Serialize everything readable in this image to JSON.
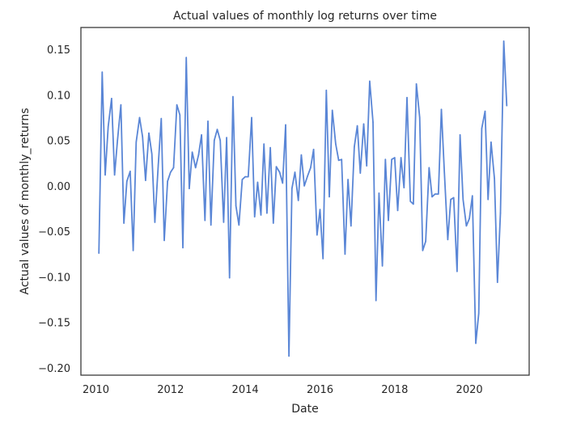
{
  "chart_data": {
    "type": "line",
    "title": "Actual values of monthly log returns over time",
    "xlabel": "Date",
    "ylabel": "Actual values of monthly_returns",
    "x_ticks": [
      "2010",
      "2012",
      "2014",
      "2016",
      "2018",
      "2020"
    ],
    "y_ticks": [
      "0.15",
      "0.10",
      "0.05",
      "0.00",
      "−0.05",
      "−0.10",
      "−0.15",
      "−0.20"
    ],
    "xlim": [
      2009.6,
      2021.6
    ],
    "ylim": [
      -0.208,
      0.174
    ],
    "grid": false,
    "line_color": "#5a86d6",
    "series": [
      {
        "x": [
          2010.08,
          2010.17,
          2010.25,
          2010.33,
          2010.42,
          2010.5,
          2010.58,
          2010.67,
          2010.75,
          2010.83,
          2010.92,
          2011.0,
          2011.08,
          2011.17,
          2011.25,
          2011.33,
          2011.42,
          2011.5,
          2011.58,
          2011.67,
          2011.75,
          2011.83,
          2011.92,
          2012.0,
          2012.08,
          2012.17,
          2012.25,
          2012.33,
          2012.42,
          2012.5,
          2012.58,
          2012.67,
          2012.75,
          2012.83,
          2012.92,
          2013.0,
          2013.08,
          2013.17,
          2013.25,
          2013.33,
          2013.42,
          2013.5,
          2013.58,
          2013.67,
          2013.75,
          2013.83,
          2013.92,
          2014.0,
          2014.08,
          2014.17,
          2014.25,
          2014.33,
          2014.42,
          2014.5,
          2014.58,
          2014.67,
          2014.75,
          2014.83,
          2014.92,
          2015.0,
          2015.08,
          2015.17,
          2015.25,
          2015.33,
          2015.42,
          2015.5,
          2015.58,
          2015.67,
          2015.75,
          2015.83,
          2015.92,
          2016.0,
          2016.08,
          2016.17,
          2016.25,
          2016.33,
          2016.42,
          2016.5,
          2016.58,
          2016.67,
          2016.75,
          2016.83,
          2016.92,
          2017.0,
          2017.08,
          2017.17,
          2017.25,
          2017.33,
          2017.42,
          2017.5,
          2017.58,
          2017.67,
          2017.75,
          2017.83,
          2017.92,
          2018.0,
          2018.08,
          2018.17,
          2018.25,
          2018.33,
          2018.42,
          2018.5,
          2018.58,
          2018.67,
          2018.75,
          2018.83,
          2018.92,
          2019.0,
          2019.08,
          2019.17,
          2019.25,
          2019.33,
          2019.42,
          2019.5,
          2019.58,
          2019.67,
          2019.75,
          2019.83,
          2019.92,
          2020.0,
          2020.08,
          2020.17,
          2020.25,
          2020.33,
          2020.42,
          2020.5,
          2020.58,
          2020.67,
          2020.75,
          2020.83,
          2020.92,
          2021.0
        ],
        "values": [
          -0.074,
          0.125,
          0.012,
          0.065,
          0.096,
          0.012,
          0.05,
          0.089,
          -0.041,
          0.005,
          0.016,
          -0.071,
          0.048,
          0.075,
          0.054,
          0.006,
          0.058,
          0.035,
          -0.04,
          0.023,
          0.074,
          -0.06,
          0.005,
          0.015,
          0.02,
          0.089,
          0.078,
          -0.068,
          0.141,
          -0.003,
          0.037,
          0.02,
          0.034,
          0.056,
          -0.038,
          0.071,
          -0.043,
          0.05,
          0.062,
          0.05,
          -0.04,
          0.053,
          -0.101,
          0.098,
          -0.022,
          -0.043,
          0.007,
          0.01,
          0.01,
          0.075,
          -0.034,
          0.004,
          -0.032,
          0.046,
          -0.03,
          0.042,
          -0.041,
          0.021,
          0.015,
          0.003,
          0.067,
          -0.187,
          -0.003,
          0.015,
          -0.016,
          0.034,
          0.0,
          0.011,
          0.02,
          0.04,
          -0.054,
          -0.026,
          -0.08,
          0.105,
          -0.012,
          0.083,
          0.046,
          0.028,
          0.029,
          -0.075,
          0.007,
          -0.044,
          0.043,
          0.066,
          0.014,
          0.068,
          0.022,
          0.115,
          0.07,
          -0.126,
          -0.008,
          -0.088,
          0.029,
          -0.038,
          0.029,
          0.031,
          -0.027,
          0.031,
          -0.002,
          0.097,
          -0.017,
          -0.02,
          0.112,
          0.075,
          -0.071,
          -0.061,
          0.02,
          -0.012,
          -0.009,
          -0.009,
          0.084,
          0.015,
          -0.059,
          -0.015,
          -0.013,
          -0.094,
          0.056,
          -0.015,
          -0.044,
          -0.036,
          -0.011,
          -0.173,
          -0.14,
          0.063,
          0.082,
          -0.015,
          0.048,
          0.008,
          -0.106,
          -0.03,
          0.159,
          0.088
        ]
      }
    ]
  }
}
